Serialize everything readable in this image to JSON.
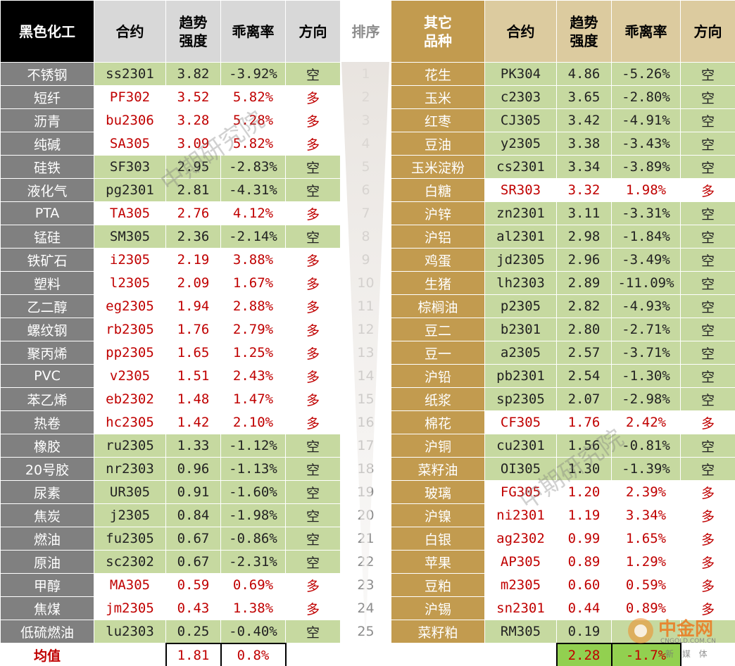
{
  "headers": {
    "left_group": "黑色化工",
    "contract": "合约",
    "trend": "趋势强度",
    "deviation": "乖离率",
    "direction": "方向",
    "rank": "排序",
    "right_group": "其它品种"
  },
  "rows": [
    {
      "rank": "1",
      "l": {
        "name": "不锈钢",
        "code": "ss2301",
        "trend": "3.82",
        "dev": "-3.92%",
        "dir": "空",
        "green": true
      },
      "r": {
        "name": "花生",
        "code": "PK304",
        "trend": "4.86",
        "dev": "-5.26%",
        "dir": "空",
        "green": true
      }
    },
    {
      "rank": "2",
      "l": {
        "name": "短纤",
        "code": "PF302",
        "trend": "3.52",
        "dev": "5.82%",
        "dir": "多",
        "green": false
      },
      "r": {
        "name": "玉米",
        "code": "c2303",
        "trend": "3.65",
        "dev": "-2.80%",
        "dir": "空",
        "green": true
      }
    },
    {
      "rank": "3",
      "l": {
        "name": "沥青",
        "code": "bu2306",
        "trend": "3.28",
        "dev": "5.28%",
        "dir": "多",
        "green": false
      },
      "r": {
        "name": "红枣",
        "code": "CJ305",
        "trend": "3.42",
        "dev": "-4.91%",
        "dir": "空",
        "green": true
      }
    },
    {
      "rank": "4",
      "l": {
        "name": "纯碱",
        "code": "SA305",
        "trend": "3.09",
        "dev": "5.82%",
        "dir": "多",
        "green": false
      },
      "r": {
        "name": "豆油",
        "code": "y2305",
        "trend": "3.38",
        "dev": "-3.43%",
        "dir": "空",
        "green": true
      }
    },
    {
      "rank": "5",
      "l": {
        "name": "硅铁",
        "code": "SF303",
        "trend": "2.95",
        "dev": "-2.83%",
        "dir": "空",
        "green": true
      },
      "r": {
        "name": "玉米淀粉",
        "code": "cs2301",
        "trend": "3.34",
        "dev": "-3.89%",
        "dir": "空",
        "green": true
      }
    },
    {
      "rank": "6",
      "l": {
        "name": "液化气",
        "code": "pg2301",
        "trend": "2.81",
        "dev": "-4.31%",
        "dir": "空",
        "green": true
      },
      "r": {
        "name": "白糖",
        "code": "SR303",
        "trend": "3.32",
        "dev": "1.98%",
        "dir": "多",
        "green": false
      }
    },
    {
      "rank": "7",
      "l": {
        "name": "PTA",
        "code": "TA305",
        "trend": "2.76",
        "dev": "4.12%",
        "dir": "多",
        "green": false
      },
      "r": {
        "name": "沪锌",
        "code": "zn2301",
        "trend": "3.11",
        "dev": "-3.31%",
        "dir": "空",
        "green": true
      }
    },
    {
      "rank": "8",
      "l": {
        "name": "锰硅",
        "code": "SM305",
        "trend": "2.36",
        "dev": "-2.14%",
        "dir": "空",
        "green": true
      },
      "r": {
        "name": "沪铝",
        "code": "al2301",
        "trend": "2.98",
        "dev": "-1.84%",
        "dir": "空",
        "green": true
      }
    },
    {
      "rank": "9",
      "l": {
        "name": "铁矿石",
        "code": "i2305",
        "trend": "2.19",
        "dev": "3.88%",
        "dir": "多",
        "green": false
      },
      "r": {
        "name": "鸡蛋",
        "code": "jd2305",
        "trend": "2.96",
        "dev": "-3.49%",
        "dir": "空",
        "green": true
      }
    },
    {
      "rank": "10",
      "l": {
        "name": "塑料",
        "code": "l2305",
        "trend": "2.09",
        "dev": "1.67%",
        "dir": "多",
        "green": false
      },
      "r": {
        "name": "生猪",
        "code": "lh2303",
        "trend": "2.89",
        "dev": "-11.09%",
        "dir": "空",
        "green": true
      }
    },
    {
      "rank": "11",
      "l": {
        "name": "乙二醇",
        "code": "eg2305",
        "trend": "1.94",
        "dev": "2.88%",
        "dir": "多",
        "green": false
      },
      "r": {
        "name": "棕榈油",
        "code": "p2305",
        "trend": "2.82",
        "dev": "-4.93%",
        "dir": "空",
        "green": true
      }
    },
    {
      "rank": "12",
      "l": {
        "name": "螺纹钢",
        "code": "rb2305",
        "trend": "1.76",
        "dev": "2.79%",
        "dir": "多",
        "green": false
      },
      "r": {
        "name": "豆二",
        "code": "b2301",
        "trend": "2.80",
        "dev": "-2.71%",
        "dir": "空",
        "green": true
      }
    },
    {
      "rank": "13",
      "l": {
        "name": "聚丙烯",
        "code": "pp2305",
        "trend": "1.65",
        "dev": "1.25%",
        "dir": "多",
        "green": false
      },
      "r": {
        "name": "豆一",
        "code": "a2305",
        "trend": "2.57",
        "dev": "-3.71%",
        "dir": "空",
        "green": true
      }
    },
    {
      "rank": "14",
      "l": {
        "name": "PVC",
        "code": "v2305",
        "trend": "1.51",
        "dev": "2.43%",
        "dir": "多",
        "green": false
      },
      "r": {
        "name": "沪铅",
        "code": "pb2301",
        "trend": "2.54",
        "dev": "-1.30%",
        "dir": "空",
        "green": true
      }
    },
    {
      "rank": "15",
      "l": {
        "name": "苯乙烯",
        "code": "eb2302",
        "trend": "1.48",
        "dev": "1.47%",
        "dir": "多",
        "green": false
      },
      "r": {
        "name": "纸浆",
        "code": "sp2305",
        "trend": "2.07",
        "dev": "-2.98%",
        "dir": "空",
        "green": true
      }
    },
    {
      "rank": "16",
      "l": {
        "name": "热卷",
        "code": "hc2305",
        "trend": "1.42",
        "dev": "2.10%",
        "dir": "多",
        "green": false
      },
      "r": {
        "name": "棉花",
        "code": "CF305",
        "trend": "1.76",
        "dev": "2.42%",
        "dir": "多",
        "green": false
      }
    },
    {
      "rank": "17",
      "l": {
        "name": "橡胶",
        "code": "ru2305",
        "trend": "1.33",
        "dev": "-1.12%",
        "dir": "空",
        "green": true
      },
      "r": {
        "name": "沪铜",
        "code": "cu2301",
        "trend": "1.56",
        "dev": "-0.81%",
        "dir": "空",
        "green": true
      }
    },
    {
      "rank": "18",
      "l": {
        "name": "20号胶",
        "code": "nr2303",
        "trend": "0.96",
        "dev": "-1.13%",
        "dir": "空",
        "green": true
      },
      "r": {
        "name": "菜籽油",
        "code": "OI305",
        "trend": "1.30",
        "dev": "-1.39%",
        "dir": "空",
        "green": true
      }
    },
    {
      "rank": "19",
      "l": {
        "name": "尿素",
        "code": "UR305",
        "trend": "0.91",
        "dev": "-1.60%",
        "dir": "空",
        "green": true
      },
      "r": {
        "name": "玻璃",
        "code": "FG305",
        "trend": "1.20",
        "dev": "2.39%",
        "dir": "多",
        "green": false
      }
    },
    {
      "rank": "20",
      "l": {
        "name": "焦炭",
        "code": "j2305",
        "trend": "0.84",
        "dev": "-1.98%",
        "dir": "空",
        "green": true
      },
      "r": {
        "name": "沪镍",
        "code": "ni2301",
        "trend": "1.19",
        "dev": "3.34%",
        "dir": "多",
        "green": false
      }
    },
    {
      "rank": "21",
      "l": {
        "name": "燃油",
        "code": "fu2305",
        "trend": "0.67",
        "dev": "-0.86%",
        "dir": "空",
        "green": true
      },
      "r": {
        "name": "白银",
        "code": "ag2302",
        "trend": "0.99",
        "dev": "1.65%",
        "dir": "多",
        "green": false
      }
    },
    {
      "rank": "22",
      "l": {
        "name": "原油",
        "code": "sc2302",
        "trend": "0.67",
        "dev": "-2.31%",
        "dir": "空",
        "green": true
      },
      "r": {
        "name": "苹果",
        "code": "AP305",
        "trend": "0.89",
        "dev": "1.29%",
        "dir": "多",
        "green": false
      }
    },
    {
      "rank": "23",
      "l": {
        "name": "甲醇",
        "code": "MA305",
        "trend": "0.59",
        "dev": "0.69%",
        "dir": "多",
        "green": false
      },
      "r": {
        "name": "豆粕",
        "code": "m2305",
        "trend": "0.60",
        "dev": "0.59%",
        "dir": "多",
        "green": false
      }
    },
    {
      "rank": "24",
      "l": {
        "name": "焦煤",
        "code": "jm2305",
        "trend": "0.43",
        "dev": "1.38%",
        "dir": "多",
        "green": false
      },
      "r": {
        "name": "沪锡",
        "code": "sn2301",
        "trend": "0.44",
        "dev": "0.89%",
        "dir": "多",
        "green": false
      }
    },
    {
      "rank": "25",
      "l": {
        "name": "低硫燃油",
        "code": "lu2303",
        "trend": "0.25",
        "dev": "-0.40%",
        "dir": "空",
        "green": true
      },
      "r": {
        "name": "菜籽粕",
        "code": "RM305",
        "trend": "0.19",
        "dev": "",
        "dir": "",
        "green": true
      }
    }
  ],
  "average": {
    "label": "均值",
    "left_trend": "1.81",
    "left_dev": "0.8%",
    "right_trend": "2.28",
    "right_dev": "-1.7%"
  },
  "watermarks": [
    "中期研究院",
    "中期研究院",
    "中期研究院"
  ],
  "logo": {
    "text": "中金网",
    "site": "CNGOLD.COM.CN",
    "sub": "新 媒 体"
  },
  "colors": {
    "green_row": "#c6d9a0",
    "red_text": "#c00000",
    "gold": "#c29b4f",
    "grey": "#808080"
  }
}
